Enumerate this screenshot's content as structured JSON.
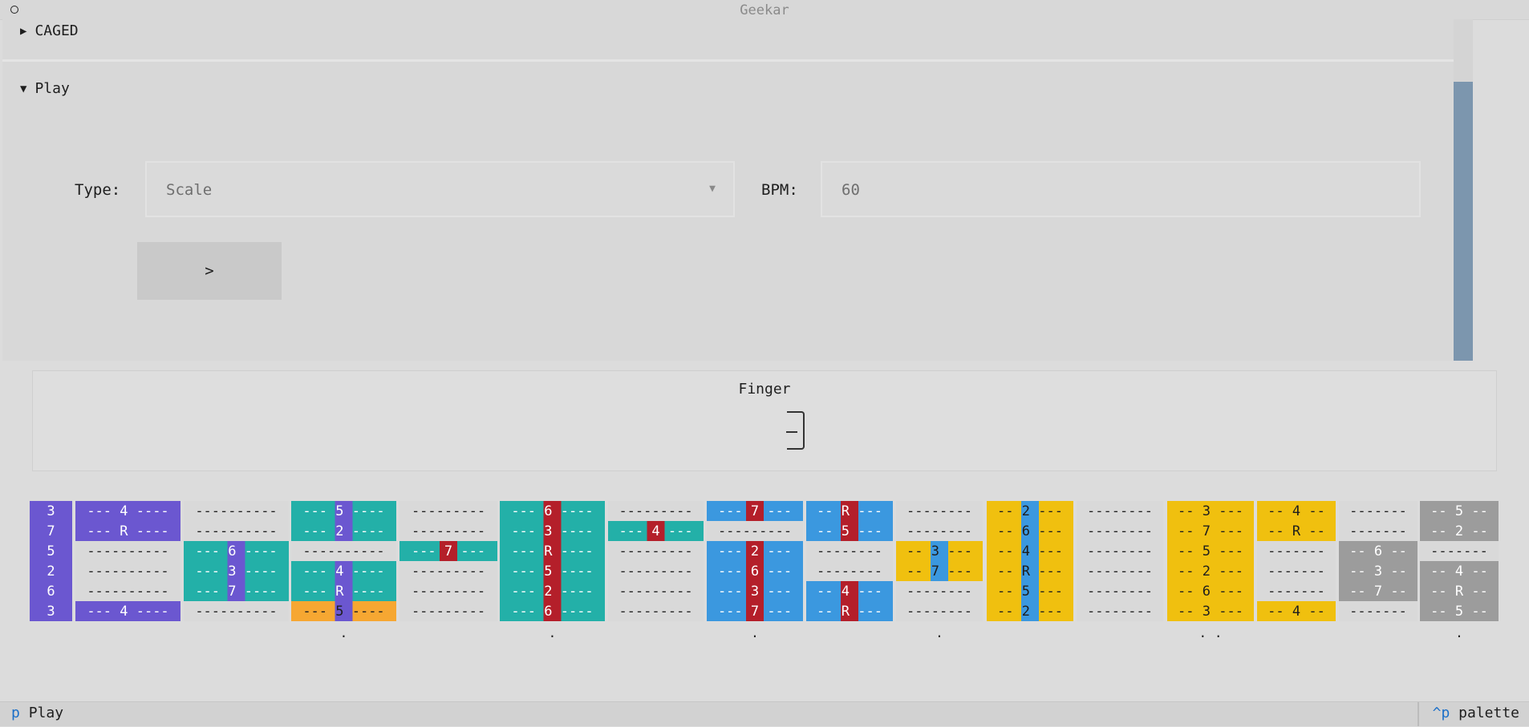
{
  "app": {
    "title": "Geekar"
  },
  "sections": {
    "caged": {
      "label": "CAGED",
      "expanded": false,
      "icon": "triangle-right-icon"
    },
    "play": {
      "label": "Play",
      "expanded": true,
      "icon": "triangle-down-icon"
    }
  },
  "form": {
    "type_label": "Type:",
    "type_value": "Scale",
    "bpm_label": "BPM:",
    "bpm_value": "60",
    "play_button_label": ">"
  },
  "finger_panel": {
    "label": "Finger"
  },
  "colors": {
    "purple": "#6b57d0",
    "teal": "#23b0a8",
    "red": "#b41f2a",
    "blue": "#3b98df",
    "yellow": "#f0c00f",
    "orange": "#f6a732",
    "gray": "#9c9c9c",
    "empty": "#d9d9d9"
  },
  "fretboard": {
    "frets": [
      {
        "cells": [
          {
            "text": "3",
            "color": "purple",
            "fill": "full"
          },
          {
            "text": "7",
            "color": "purple",
            "fill": "full"
          },
          {
            "text": "5",
            "color": "purple",
            "fill": "full"
          },
          {
            "text": "2",
            "color": "purple",
            "fill": "full"
          },
          {
            "text": "6",
            "color": "purple",
            "fill": "full"
          },
          {
            "text": "3",
            "color": "purple",
            "fill": "full"
          }
        ]
      },
      {
        "cells": [
          {
            "text": "--- 4 ----",
            "color": "purple",
            "fill": "full"
          },
          {
            "text": "--- R ----",
            "color": "purple",
            "fill": "full"
          },
          {
            "text": "----------",
            "color": "empty",
            "fill": "full"
          },
          {
            "text": "----------",
            "color": "empty",
            "fill": "full"
          },
          {
            "text": "----------",
            "color": "empty",
            "fill": "full"
          },
          {
            "text": "--- 4 ----",
            "color": "purple",
            "fill": "full"
          }
        ]
      },
      {
        "cells": [
          {
            "text": "----------",
            "color": "empty",
            "fill": "full"
          },
          {
            "text": "----------",
            "color": "empty",
            "fill": "full"
          },
          {
            "text": "--- 6 ----",
            "color": "teal",
            "fill": "full",
            "dot": "purple"
          },
          {
            "text": "--- 3 ----",
            "color": "teal",
            "fill": "full",
            "dot": "purple"
          },
          {
            "text": "--- 7 ----",
            "color": "teal",
            "fill": "full",
            "dot": "purple"
          },
          {
            "text": "----------",
            "color": "empty",
            "fill": "full"
          }
        ]
      },
      {
        "cells": [
          {
            "text": "--- 5 ----",
            "color": "teal",
            "fill": "full",
            "dot": "purple"
          },
          {
            "text": "--- 2 ----",
            "color": "teal",
            "fill": "full",
            "dot": "purple"
          },
          {
            "text": "----------",
            "color": "empty",
            "fill": "full"
          },
          {
            "text": "--- 4 ----",
            "color": "teal",
            "fill": "full",
            "dot": "purple"
          },
          {
            "text": "--- R ----",
            "color": "teal",
            "fill": "full",
            "dot": "purple"
          },
          {
            "text": "--- 5 ----",
            "color": "orange",
            "fill": "full",
            "dot": "purple"
          }
        ]
      },
      {
        "cells": [
          {
            "text": "---------",
            "color": "empty",
            "fill": "full"
          },
          {
            "text": "---------",
            "color": "empty",
            "fill": "full"
          },
          {
            "text": "--- 7 ---",
            "color": "teal",
            "fill": "full",
            "dot": "red"
          },
          {
            "text": "---------",
            "color": "empty",
            "fill": "full"
          },
          {
            "text": "---------",
            "color": "empty",
            "fill": "full"
          },
          {
            "text": "---------",
            "color": "empty",
            "fill": "full"
          }
        ]
      },
      {
        "cells": [
          {
            "text": "--- 6 ----",
            "color": "teal",
            "fill": "full",
            "dot": "red"
          },
          {
            "text": "--- 3 ----",
            "color": "teal",
            "fill": "full",
            "dot": "red"
          },
          {
            "text": "--- R ----",
            "color": "teal",
            "fill": "full",
            "dot": "red"
          },
          {
            "text": "--- 5 ----",
            "color": "teal",
            "fill": "full",
            "dot": "red"
          },
          {
            "text": "--- 2 ----",
            "color": "teal",
            "fill": "full",
            "dot": "red"
          },
          {
            "text": "--- 6 ----",
            "color": "teal",
            "fill": "full",
            "dot": "red"
          }
        ]
      },
      {
        "cells": [
          {
            "text": "---------",
            "color": "empty",
            "fill": "full"
          },
          {
            "text": "--- 4 ---",
            "color": "teal",
            "fill": "full",
            "dot": "red"
          },
          {
            "text": "---------",
            "color": "empty",
            "fill": "full"
          },
          {
            "text": "---------",
            "color": "empty",
            "fill": "full"
          },
          {
            "text": "---------",
            "color": "empty",
            "fill": "full"
          },
          {
            "text": "---------",
            "color": "empty",
            "fill": "full"
          }
        ]
      },
      {
        "cells": [
          {
            "text": "--- 7 ---",
            "color": "blue",
            "fill": "full",
            "dot": "red"
          },
          {
            "text": "---------",
            "color": "empty",
            "fill": "full"
          },
          {
            "text": "--- 2 ---",
            "color": "blue",
            "fill": "full",
            "dot": "red"
          },
          {
            "text": "--- 6 ---",
            "color": "blue",
            "fill": "full",
            "dot": "red"
          },
          {
            "text": "--- 3 ---",
            "color": "blue",
            "fill": "full",
            "dot": "red"
          },
          {
            "text": "--- 7 ---",
            "color": "blue",
            "fill": "full",
            "dot": "red"
          }
        ]
      },
      {
        "cells": [
          {
            "text": "-- R ---",
            "color": "blue",
            "fill": "full",
            "dot": "red"
          },
          {
            "text": "-- 5 ---",
            "color": "blue",
            "fill": "full",
            "dot": "red"
          },
          {
            "text": "--------",
            "color": "empty",
            "fill": "full"
          },
          {
            "text": "--------",
            "color": "empty",
            "fill": "full"
          },
          {
            "text": "-- 4 ---",
            "color": "blue",
            "fill": "full",
            "dot": "red"
          },
          {
            "text": "-- R ---",
            "color": "blue",
            "fill": "full",
            "dot": "red"
          }
        ]
      },
      {
        "cells": [
          {
            "text": "--------",
            "color": "empty",
            "fill": "full"
          },
          {
            "text": "--------",
            "color": "empty",
            "fill": "full"
          },
          {
            "text": "-- 3 ---",
            "color": "yellow",
            "fill": "full",
            "dot": "blue"
          },
          {
            "text": "-- 7 ---",
            "color": "yellow",
            "fill": "full",
            "dot": "blue"
          },
          {
            "text": "--------",
            "color": "empty",
            "fill": "full"
          },
          {
            "text": "--------",
            "color": "empty",
            "fill": "full"
          }
        ]
      },
      {
        "cells": [
          {
            "text": "-- 2 ---",
            "color": "yellow",
            "fill": "full",
            "dot": "blue"
          },
          {
            "text": "-- 6 ---",
            "color": "yellow",
            "fill": "full",
            "dot": "blue"
          },
          {
            "text": "-- 4 ---",
            "color": "yellow",
            "fill": "full",
            "dot": "blue"
          },
          {
            "text": "-- R ---",
            "color": "yellow",
            "fill": "full",
            "dot": "blue"
          },
          {
            "text": "-- 5 ---",
            "color": "yellow",
            "fill": "full",
            "dot": "blue"
          },
          {
            "text": "-- 2 ---",
            "color": "yellow",
            "fill": "full",
            "dot": "blue"
          }
        ]
      },
      {
        "cells": [
          {
            "text": "--------",
            "color": "empty",
            "fill": "full"
          },
          {
            "text": "--------",
            "color": "empty",
            "fill": "full"
          },
          {
            "text": "--------",
            "color": "empty",
            "fill": "full"
          },
          {
            "text": "--------",
            "color": "empty",
            "fill": "full"
          },
          {
            "text": "--------",
            "color": "empty",
            "fill": "full"
          },
          {
            "text": "--------",
            "color": "empty",
            "fill": "full"
          }
        ]
      },
      {
        "cells": [
          {
            "text": "-- 3 ---",
            "color": "yellow",
            "fill": "full"
          },
          {
            "text": "-- 7 ---",
            "color": "yellow",
            "fill": "full"
          },
          {
            "text": "-- 5 ---",
            "color": "yellow",
            "fill": "full"
          },
          {
            "text": "-- 2 ---",
            "color": "yellow",
            "fill": "full"
          },
          {
            "text": "-- 6 ---",
            "color": "yellow",
            "fill": "full"
          },
          {
            "text": "-- 3 ---",
            "color": "yellow",
            "fill": "full"
          }
        ]
      },
      {
        "cells": [
          {
            "text": "-- 4 --",
            "color": "yellow",
            "fill": "full"
          },
          {
            "text": "-- R --",
            "color": "yellow",
            "fill": "full"
          },
          {
            "text": "-------",
            "color": "empty",
            "fill": "full"
          },
          {
            "text": "-------",
            "color": "empty",
            "fill": "full"
          },
          {
            "text": "-------",
            "color": "empty",
            "fill": "full"
          },
          {
            "text": "-- 4 --",
            "color": "yellow",
            "fill": "full"
          }
        ]
      },
      {
        "cells": [
          {
            "text": "-------",
            "color": "empty",
            "fill": "full"
          },
          {
            "text": "-------",
            "color": "empty",
            "fill": "full"
          },
          {
            "text": "-- 6 --",
            "color": "gray",
            "fill": "full"
          },
          {
            "text": "-- 3 --",
            "color": "gray",
            "fill": "full"
          },
          {
            "text": "-- 7 --",
            "color": "gray",
            "fill": "full"
          },
          {
            "text": "-------",
            "color": "empty",
            "fill": "full"
          }
        ]
      },
      {
        "cells": [
          {
            "text": "-- 5 --",
            "color": "gray",
            "fill": "full"
          },
          {
            "text": "-- 2 --",
            "color": "gray",
            "fill": "full"
          },
          {
            "text": "-------",
            "color": "empty",
            "fill": "full"
          },
          {
            "text": "-- 4 --",
            "color": "gray",
            "fill": "full"
          },
          {
            "text": "-- R --",
            "color": "gray",
            "fill": "full"
          },
          {
            "text": "-- 5 --",
            "color": "gray",
            "fill": "full"
          }
        ]
      }
    ],
    "fret_markers": [
      {
        "fret_index": 3,
        "text": "."
      },
      {
        "fret_index": 5,
        "text": "."
      },
      {
        "fret_index": 7,
        "text": "."
      },
      {
        "fret_index": 9,
        "text": "."
      },
      {
        "fret_index": 12,
        "text": ". ."
      },
      {
        "fret_index": 15,
        "text": "."
      }
    ]
  },
  "statusbar": {
    "left_key": "p",
    "left_label": "Play",
    "right_key": "^p",
    "right_label": "palette"
  }
}
